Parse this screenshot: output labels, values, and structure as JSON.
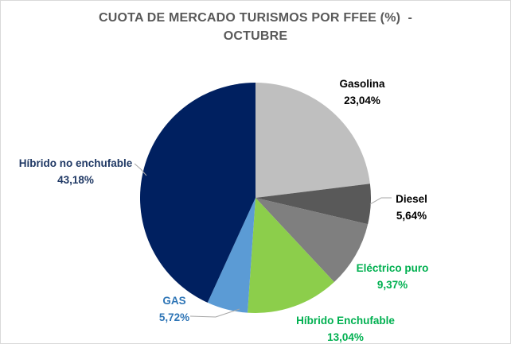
{
  "chart_data": {
    "type": "pie",
    "title": "CUOTA DE MERCADO TURISMOS POR FFEE (%) - OCTUBRE",
    "title_lines": [
      "CUOTA DE MERCADO TURISMOS POR FFEE (%)  -",
      "OCTUBRE"
    ],
    "title_color": "#595959",
    "unit": "%",
    "legend": "none",
    "start_angle_deg": 0,
    "direction": "clockwise",
    "leader_line_color": "#a6a6a6",
    "slices": [
      {
        "id": "gasolina",
        "label": "Gasolina",
        "value": 23.04,
        "value_label": "23,04%",
        "color": "#BFBFBF",
        "label_color": "#000000"
      },
      {
        "id": "diesel",
        "label": "Diesel",
        "value": 5.64,
        "value_label": "5,64%",
        "color": "#595959",
        "label_color": "#000000"
      },
      {
        "id": "electrico-puro",
        "label": "Eléctrico puro",
        "value": 9.37,
        "value_label": "9,37%",
        "color": "#7F7F7F",
        "label_color": "#00B050"
      },
      {
        "id": "hibrido-enchufable",
        "label": "Híbrido Enchufable",
        "value": 13.04,
        "value_label": "13,04%",
        "color": "#8CCE4B",
        "label_color": "#00B050"
      },
      {
        "id": "gas",
        "label": "GAS",
        "value": 5.72,
        "value_label": "5,72%",
        "color": "#5B9BD5",
        "label_color": "#2E75B6"
      },
      {
        "id": "hibrido-no-enchufable",
        "label": "Híbrido no enchufable",
        "value": 43.18,
        "value_label": "43,18%",
        "color": "#002060",
        "label_color": "#1F3864"
      }
    ]
  }
}
